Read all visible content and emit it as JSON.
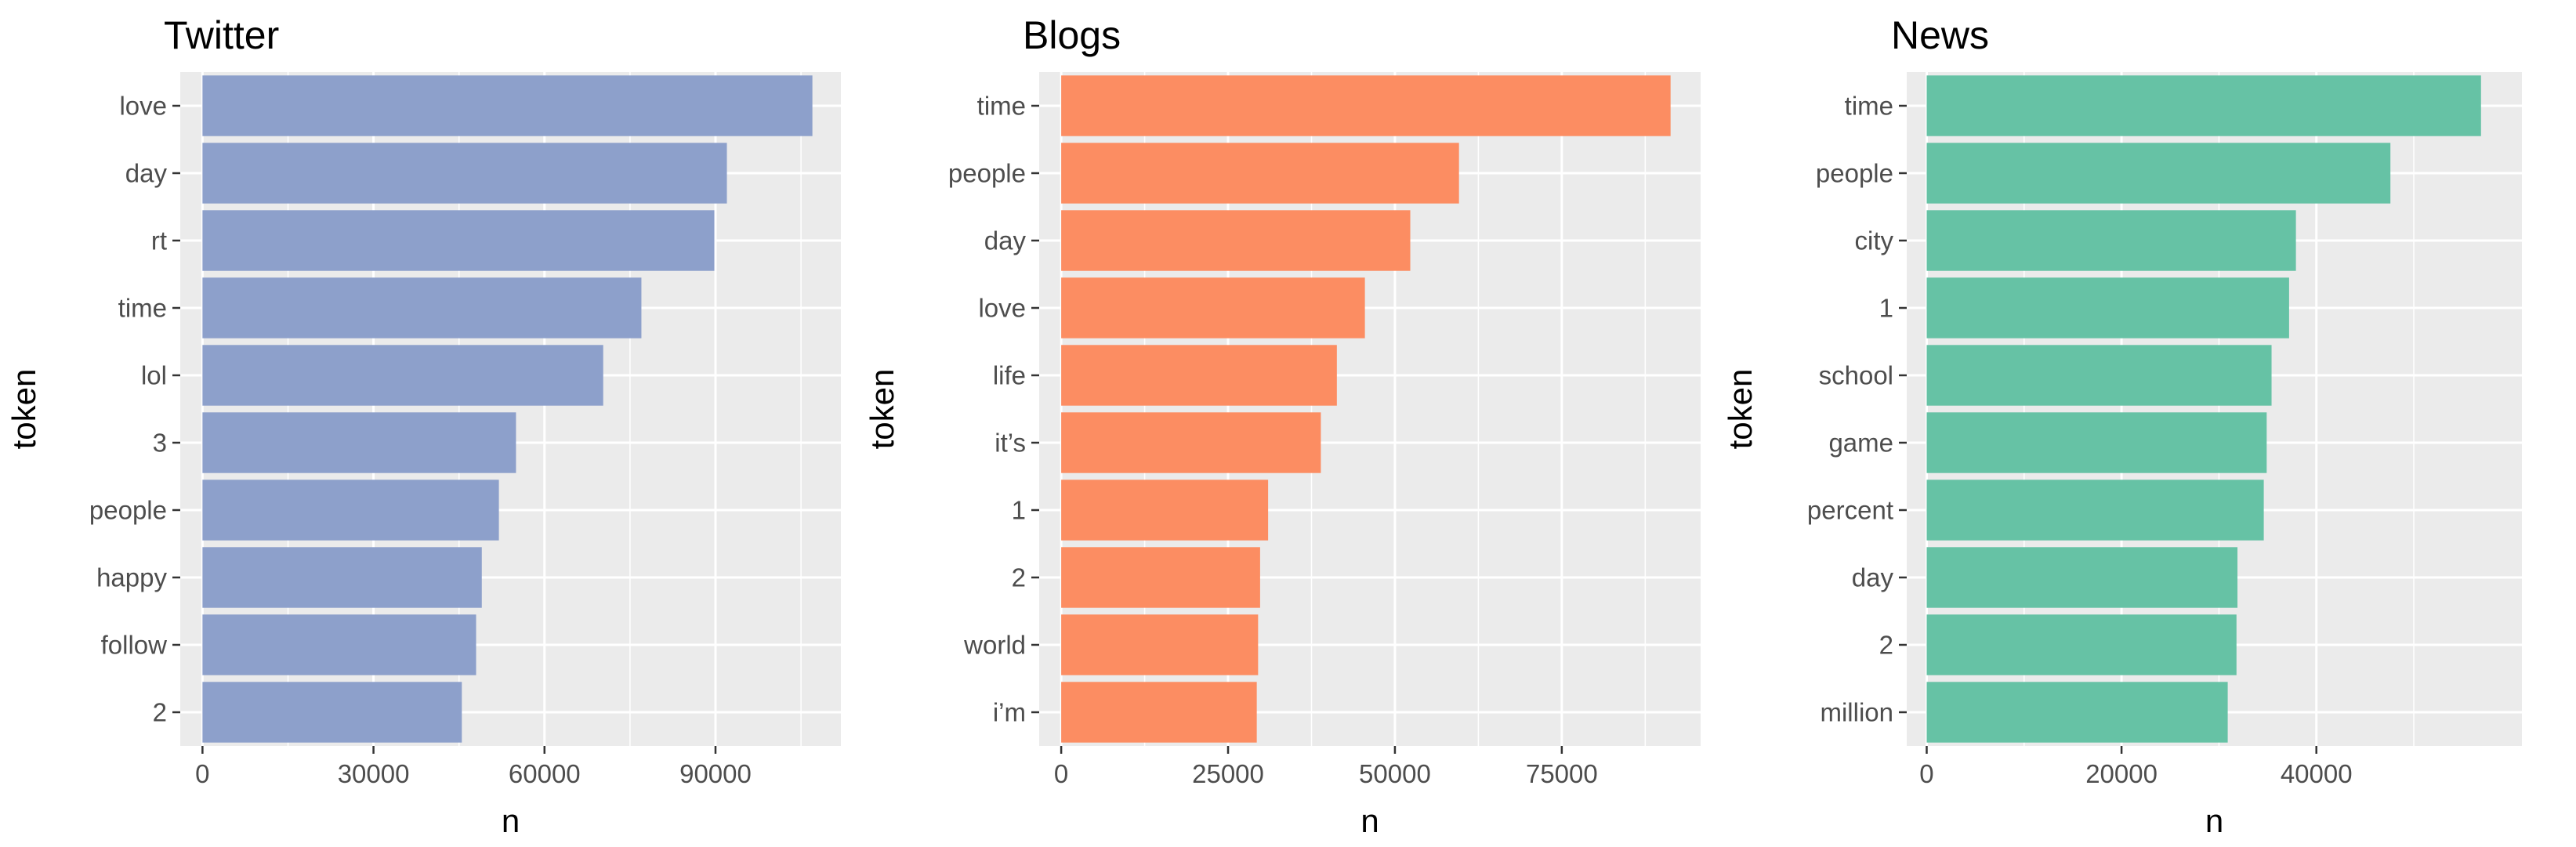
{
  "chart_data": [
    {
      "type": "bar",
      "orientation": "horizontal",
      "title": "Twitter",
      "xlabel": "n",
      "ylabel": "token",
      "color": "#8DA0CB",
      "categories": [
        "love",
        "day",
        "rt",
        "time",
        "lol",
        "3",
        "people",
        "happy",
        "follow",
        "2"
      ],
      "values": [
        107000,
        92000,
        89800,
        77000,
        70300,
        55000,
        52000,
        49000,
        48000,
        45500
      ],
      "xlim": [
        -3900,
        112000
      ],
      "xticks": [
        0,
        30000,
        60000,
        90000
      ],
      "xtick_labels": [
        "0",
        "30000",
        "60000",
        "90000"
      ],
      "grid": true
    },
    {
      "type": "bar",
      "orientation": "horizontal",
      "title": "Blogs",
      "xlabel": "n",
      "ylabel": "token",
      "color": "#FC8D62",
      "categories": [
        "time",
        "people",
        "day",
        "love",
        "life",
        "it’s",
        "1",
        "2",
        "world",
        "i’m"
      ],
      "values": [
        91300,
        59600,
        52300,
        45500,
        41300,
        38900,
        31000,
        29800,
        29500,
        29300
      ],
      "xlim": [
        -3300,
        95800
      ],
      "xticks": [
        0,
        25000,
        50000,
        75000
      ],
      "xtick_labels": [
        "0",
        "25000",
        "50000",
        "75000"
      ],
      "grid": true
    },
    {
      "type": "bar",
      "orientation": "horizontal",
      "title": "News",
      "xlabel": "n",
      "ylabel": "token",
      "color": "#66C2A5",
      "categories": [
        "time",
        "people",
        "city",
        "1",
        "school",
        "game",
        "percent",
        "day",
        "2",
        "million"
      ],
      "values": [
        56900,
        47600,
        37900,
        37200,
        35400,
        34900,
        34600,
        31900,
        31800,
        30900
      ],
      "xlim": [
        -2050,
        61100
      ],
      "xticks": [
        0,
        20000,
        40000
      ],
      "xtick_labels": [
        "0",
        "20000",
        "40000"
      ],
      "grid": true
    }
  ]
}
